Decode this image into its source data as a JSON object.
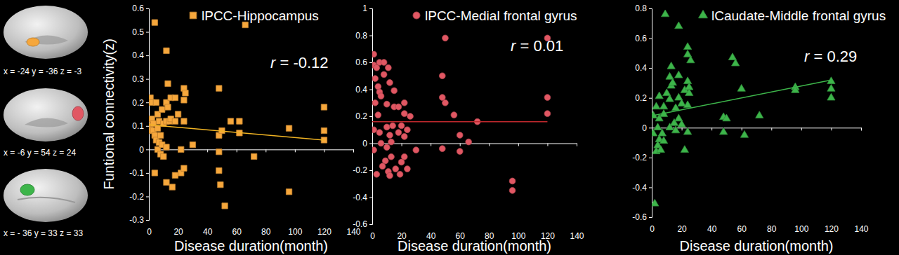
{
  "chart_data": [
    {
      "type": "scatter",
      "y_label": "Funtional connectivity(z)",
      "x_label": "Disease duration(month)",
      "annotations": [
        "r = -0.12"
      ],
      "inset_caption": "x = -24 y = -36 z = -3",
      "legend": "top",
      "xlim": [
        0,
        140
      ],
      "xticks": [
        0,
        20,
        40,
        60,
        80,
        100,
        120,
        140
      ],
      "ylim": [
        -0.3,
        0.6
      ],
      "yticks": [
        -0.3,
        -0.2,
        -0.1,
        0,
        0.1,
        0.2,
        0.3,
        0.4,
        0.5,
        0.6
      ],
      "series": [
        {
          "name": "lPCC-Hippocampus",
          "color": "#f6a73c",
          "marker": "square",
          "x": [
            1,
            1,
            1,
            2,
            2,
            3,
            3,
            4,
            4,
            4,
            5,
            5,
            6,
            6,
            6,
            7,
            7,
            8,
            8,
            9,
            9,
            10,
            10,
            12,
            12,
            12,
            12,
            12,
            13,
            13,
            14,
            15,
            15,
            16,
            18,
            18,
            18,
            20,
            22,
            22,
            24,
            24,
            24,
            24,
            25,
            30,
            48,
            48,
            48,
            48,
            49,
            50,
            52,
            56,
            62,
            62,
            66,
            72,
            96,
            96,
            120,
            120,
            120
          ],
          "values": [
            0.22,
            0.1,
            0.08,
            0.13,
            0.2,
            0.11,
            0.08,
            0.54,
            0.06,
            -0.1,
            0.2,
            0.04,
            0.15,
            0.09,
            0,
            0.12,
            0.03,
            0.06,
            -0.02,
            0.17,
            0.02,
            0.11,
            -0.03,
            0.42,
            0.2,
            0.12,
            0.01,
            -0.14,
            0.28,
            0.18,
            0.12,
            0.22,
            0.13,
            -0.16,
            0.22,
            0.12,
            -0.11,
            0.15,
            0,
            -0.1,
            0.26,
            0.21,
            0.12,
            -0.08,
            0.24,
            0.02,
            0.26,
            0.06,
            -0.01,
            -0.09,
            -0.15,
            0.08,
            -0.24,
            0.12,
            0.12,
            0.07,
            0.53,
            -0.03,
            0.09,
            -0.18,
            0.18,
            0.08,
            0.04
          ]
        },
        {
          "type": "line",
          "color": "#f0b323",
          "x": [
            0,
            120
          ],
          "values": [
            0.105,
            0.04
          ]
        }
      ]
    },
    {
      "type": "scatter",
      "x_label": "Disease duration(month)",
      "annotations": [
        "r = 0.01"
      ],
      "inset_caption": "x = -6 y = 54 z = 24",
      "legend": "top",
      "xlim": [
        0,
        140
      ],
      "xticks": [
        0,
        20,
        40,
        60,
        80,
        100,
        120,
        140
      ],
      "ylim": [
        -0.6,
        1
      ],
      "yticks": [
        -0.6,
        -0.4,
        -0.2,
        0,
        0.2,
        0.4,
        0.6,
        0.8,
        1
      ],
      "series": [
        {
          "name": "lPCC-Medial frontal gyrus",
          "color": "#e15763",
          "marker": "circle",
          "x": [
            1,
            1,
            1,
            1,
            2,
            2,
            3,
            3,
            4,
            4,
            5,
            5,
            5,
            6,
            6,
            7,
            8,
            8,
            9,
            10,
            10,
            10,
            11,
            11,
            12,
            12,
            12,
            13,
            13,
            14,
            15,
            15,
            16,
            18,
            18,
            19,
            20,
            20,
            22,
            22,
            22,
            22,
            24,
            24,
            26,
            30,
            48,
            48,
            48,
            50,
            50,
            56,
            60,
            60,
            66,
            72,
            96,
            96,
            120,
            120,
            120
          ],
          "values": [
            0.66,
            0.58,
            0.1,
            -0.05,
            0.48,
            0.3,
            0.56,
            -0.23,
            0.42,
            0.21,
            0.6,
            0.38,
            0.08,
            0.35,
            0,
            -0.17,
            0.6,
            0.51,
            -0.13,
            0.29,
            0.12,
            -0.03,
            0.56,
            -0.21,
            0.45,
            0.06,
            -0.24,
            0.01,
            -0.1,
            0.13,
            0.39,
            0.27,
            -0.19,
            0.27,
            0.08,
            -0.23,
            0.13,
            -0.14,
            0.3,
            0.22,
            0.05,
            -0.1,
            0.1,
            -0.19,
            0.2,
            -0.05,
            0.5,
            0.34,
            -0.04,
            0.78,
            0.3,
            0.21,
            0.06,
            -0.06,
            0.01,
            0.16,
            -0.28,
            -0.35,
            0.78,
            0.34,
            0.22
          ]
        },
        {
          "type": "line",
          "color": "#c0282d",
          "x": [
            0,
            120
          ],
          "values": [
            0.16,
            0.16
          ]
        }
      ]
    },
    {
      "type": "scatter",
      "x_label": "Disease duration(month)",
      "annotations": [
        "r = 0.29"
      ],
      "inset_caption": "x = - 36 y = 33 z = 33",
      "legend": "top",
      "xlim": [
        0,
        140
      ],
      "xticks": [
        0,
        20,
        40,
        60,
        80,
        100,
        120,
        140
      ],
      "ylim": [
        -0.6,
        0.8
      ],
      "yticks": [
        -0.6,
        -0.4,
        -0.2,
        0,
        0.2,
        0.4,
        0.6,
        0.8
      ],
      "series": [
        {
          "name": "lCaudate-Middle frontal gyrus",
          "color": "#3db54a",
          "marker": "triangle",
          "x": [
            1,
            1,
            2,
            3,
            3,
            4,
            4,
            5,
            5,
            5,
            6,
            7,
            8,
            8,
            8,
            9,
            10,
            12,
            12,
            12,
            13,
            13,
            14,
            15,
            16,
            16,
            18,
            18,
            18,
            18,
            20,
            20,
            22,
            22,
            24,
            24,
            24,
            24,
            24,
            25,
            25,
            26,
            48,
            48,
            50,
            54,
            56,
            60,
            62,
            72,
            96,
            96,
            120,
            120,
            120
          ],
          "values": [
            0.08,
            -0.04,
            -0.51,
            0.14,
            -0.16,
            0,
            -0.12,
            0.21,
            0.06,
            -0.08,
            -0.15,
            -0.04,
            0.14,
            0.09,
            -0.09,
            0.76,
            0.23,
            0.34,
            0.19,
            0,
            0.41,
            0.28,
            0.3,
            0.03,
            0.13,
            -0.02,
            0.68,
            0.35,
            0.2,
            0.06,
            0.16,
            0.02,
            0.25,
            -0.15,
            0.54,
            0.49,
            0.31,
            0.15,
            -0.03,
            0.27,
            0.23,
            0.45,
            0.07,
            -0.03,
            0.06,
            0.47,
            0.43,
            0.26,
            -0.05,
            0.08,
            0.27,
            0.25,
            0.31,
            0.26,
            0.2
          ]
        },
        {
          "type": "line",
          "color": "#3db54a",
          "x": [
            0,
            120
          ],
          "values": [
            0.08,
            0.32
          ]
        }
      ]
    }
  ]
}
